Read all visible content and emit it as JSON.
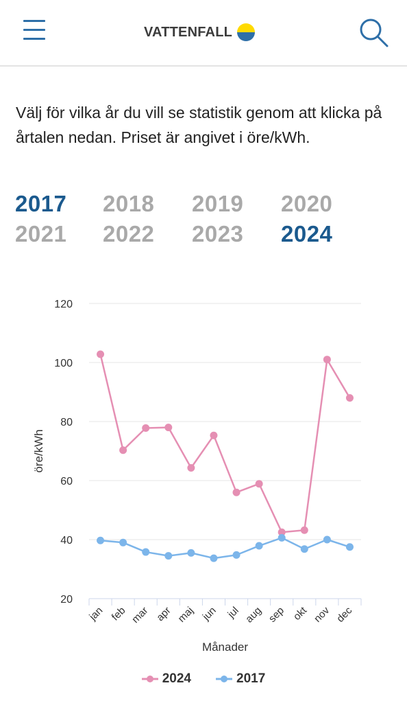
{
  "header": {
    "logo_text": "VATTENFALL",
    "menu_icon": "hamburger-menu-icon",
    "search_icon": "search-icon"
  },
  "intro_text": "Välj för vilka år du vill se statistik genom att klicka på årtalen nedan. Priset är angivet i öre/kWh.",
  "years": [
    {
      "label": "2017",
      "active": true
    },
    {
      "label": "2018",
      "active": false
    },
    {
      "label": "2019",
      "active": false
    },
    {
      "label": "2020",
      "active": false
    },
    {
      "label": "2021",
      "active": false
    },
    {
      "label": "2022",
      "active": false
    },
    {
      "label": "2023",
      "active": false
    },
    {
      "label": "2024",
      "active": true
    }
  ],
  "colors": {
    "series_2024": "#e58fb3",
    "series_2017": "#7cb5ea",
    "active_year": "#1b5a8e",
    "inactive_year": "#a9a9a9",
    "brand_blue": "#2e6fa8",
    "logo_yellow": "#ffda00"
  },
  "chart_data": {
    "type": "line",
    "xlabel": "Månader",
    "ylabel": "öre/kWh",
    "ylim": [
      20,
      120
    ],
    "yticks": [
      20,
      40,
      60,
      80,
      100,
      120
    ],
    "grid": true,
    "legend_position": "bottom",
    "categories": [
      "jan",
      "feb",
      "mar",
      "apr",
      "maj",
      "jun",
      "jul",
      "aug",
      "sep",
      "okt",
      "nov",
      "dec"
    ],
    "series": [
      {
        "name": "2024",
        "values": [
          102.8,
          70.3,
          77.8,
          78.0,
          64.3,
          75.3,
          56.0,
          58.9,
          42.5,
          43.2,
          101.0,
          88.0
        ]
      },
      {
        "name": "2017",
        "values": [
          39.7,
          39.0,
          35.8,
          34.5,
          35.5,
          33.7,
          34.8,
          37.9,
          40.6,
          36.8,
          40.0,
          37.5
        ]
      }
    ]
  }
}
